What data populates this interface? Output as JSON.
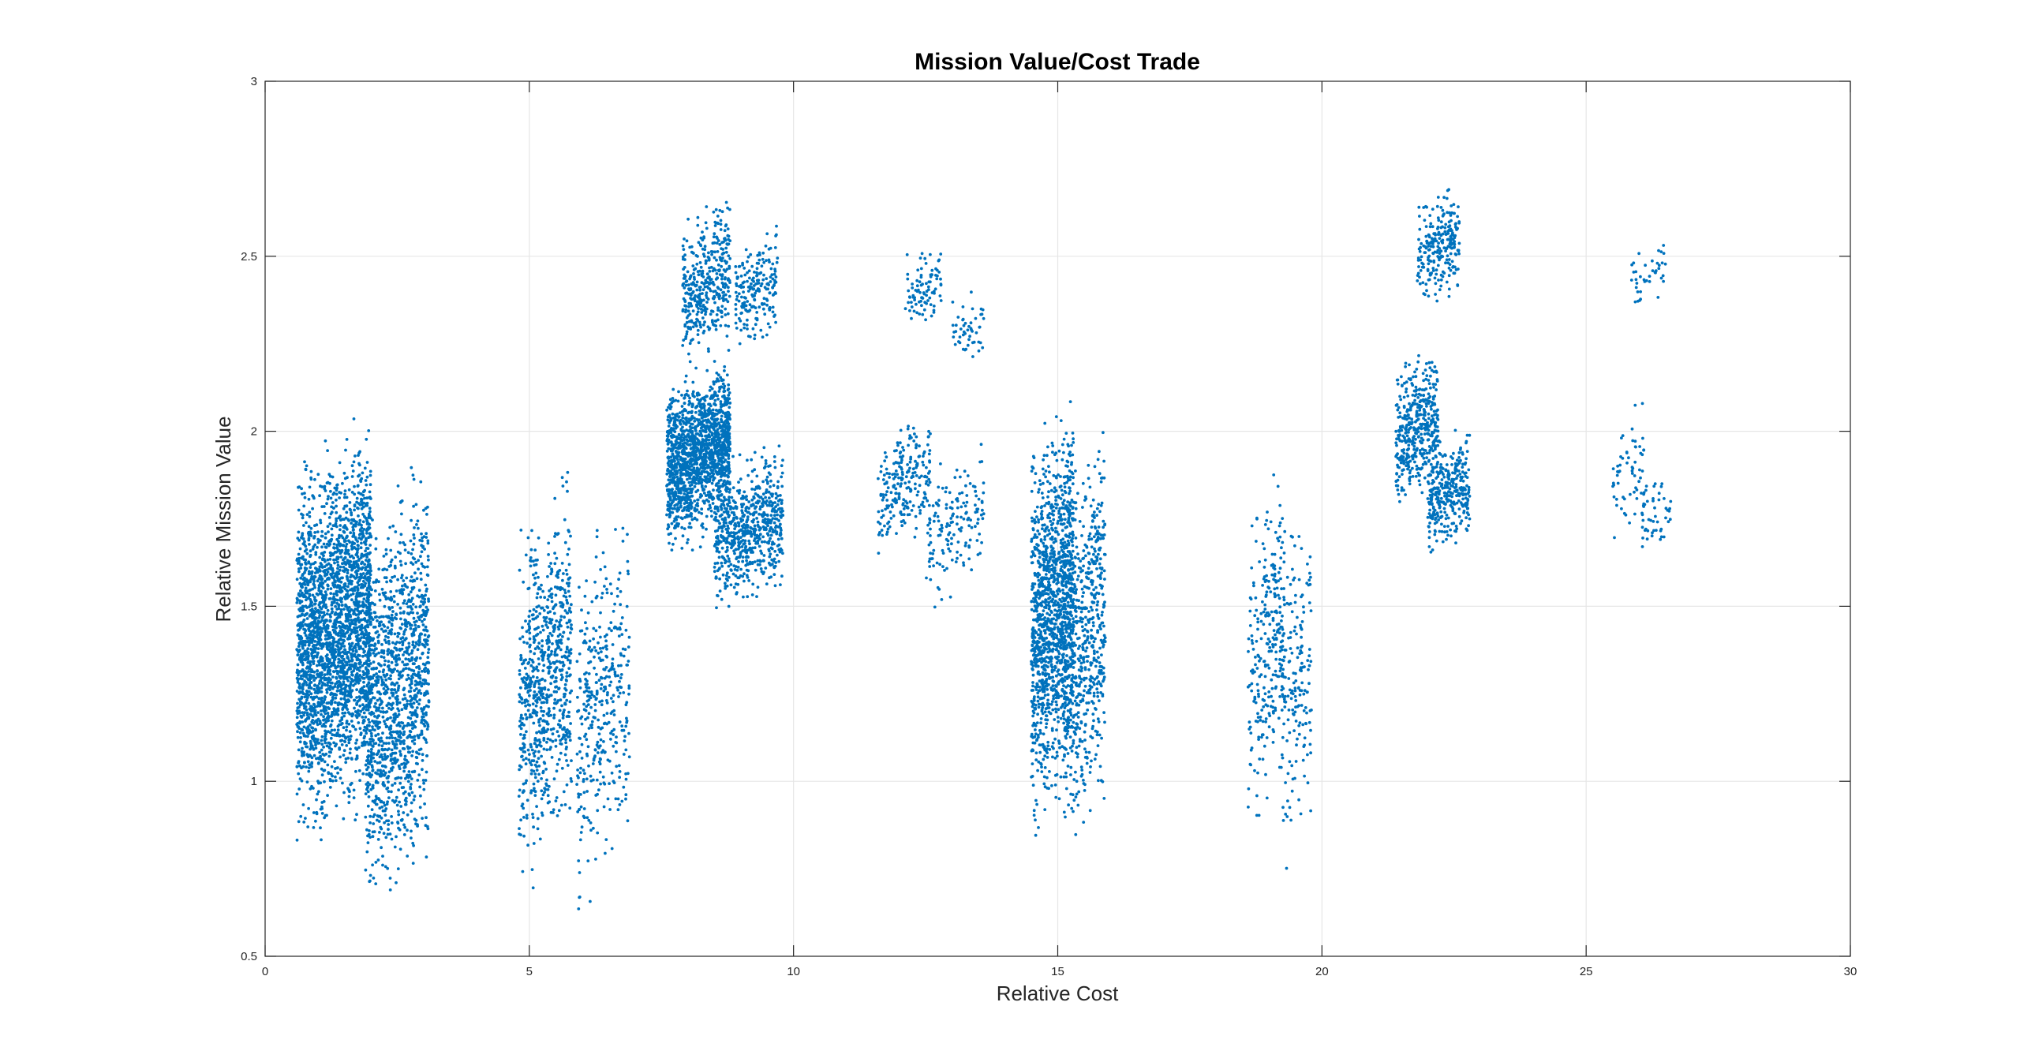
{
  "chart_data": {
    "type": "scatter",
    "title": "Mission Value/Cost Trade",
    "xlabel": "Relative Cost",
    "ylabel": "Relative Mission Value",
    "xlim": [
      0,
      30
    ],
    "ylim": [
      0.5,
      3
    ],
    "xticks": [
      0,
      5,
      10,
      15,
      20,
      25,
      30
    ],
    "yticks": [
      0.5,
      1,
      1.5,
      2,
      2.5,
      3
    ],
    "xtick_labels": [
      "0",
      "5",
      "10",
      "15",
      "20",
      "25",
      "30"
    ],
    "ytick_labels": [
      "0.5",
      "1",
      "1.5",
      "2",
      "2.5",
      "3"
    ],
    "grid": true,
    "marker_color": "#0072BD",
    "clusters": [
      {
        "x": [
          0.6,
          2.0
        ],
        "y": [
          0.72,
          2.12
        ],
        "n": 2600
      },
      {
        "x": [
          1.9,
          3.1
        ],
        "y": [
          0.52,
          2.02
        ],
        "n": 1300
      },
      {
        "x": [
          4.8,
          5.8
        ],
        "y": [
          0.62,
          1.97
        ],
        "n": 750
      },
      {
        "x": [
          5.9,
          6.9
        ],
        "y": [
          0.52,
          1.87
        ],
        "n": 380
      },
      {
        "x": [
          7.6,
          8.8
        ],
        "y": [
          1.62,
          2.25
        ],
        "n": 1500
      },
      {
        "x": [
          8.5,
          9.8
        ],
        "y": [
          1.45,
          2.0
        ],
        "n": 650
      },
      {
        "x": [
          7.9,
          8.8
        ],
        "y": [
          2.15,
          2.7
        ],
        "n": 400
      },
      {
        "x": [
          8.9,
          9.7
        ],
        "y": [
          2.2,
          2.6
        ],
        "n": 200
      },
      {
        "x": [
          11.6,
          12.6
        ],
        "y": [
          1.62,
          2.1
        ],
        "n": 220
      },
      {
        "x": [
          12.5,
          13.6
        ],
        "y": [
          1.45,
          1.99
        ],
        "n": 160
      },
      {
        "x": [
          12.1,
          12.8
        ],
        "y": [
          2.25,
          2.55
        ],
        "n": 90
      },
      {
        "x": [
          13.0,
          13.6
        ],
        "y": [
          2.15,
          2.45
        ],
        "n": 50
      },
      {
        "x": [
          14.5,
          15.3
        ],
        "y": [
          0.8,
          2.18
        ],
        "n": 1300
      },
      {
        "x": [
          15.1,
          15.9
        ],
        "y": [
          0.68,
          2.14
        ],
        "n": 650
      },
      {
        "x": [
          18.6,
          19.3
        ],
        "y": [
          0.78,
          2.02
        ],
        "n": 260
      },
      {
        "x": [
          19.2,
          19.8
        ],
        "y": [
          0.68,
          1.99
        ],
        "n": 180
      },
      {
        "x": [
          21.4,
          22.2
        ],
        "y": [
          1.72,
          2.3
        ],
        "n": 420
      },
      {
        "x": [
          22.0,
          22.8
        ],
        "y": [
          1.6,
          2.05
        ],
        "n": 330
      },
      {
        "x": [
          21.8,
          22.6
        ],
        "y": [
          2.3,
          2.75
        ],
        "n": 240
      },
      {
        "x": [
          25.5,
          26.1
        ],
        "y": [
          1.65,
          2.15
        ],
        "n": 60
      },
      {
        "x": [
          26.0,
          26.6
        ],
        "y": [
          1.6,
          1.93
        ],
        "n": 50
      },
      {
        "x": [
          25.8,
          26.5
        ],
        "y": [
          2.3,
          2.6
        ],
        "n": 40
      }
    ]
  }
}
